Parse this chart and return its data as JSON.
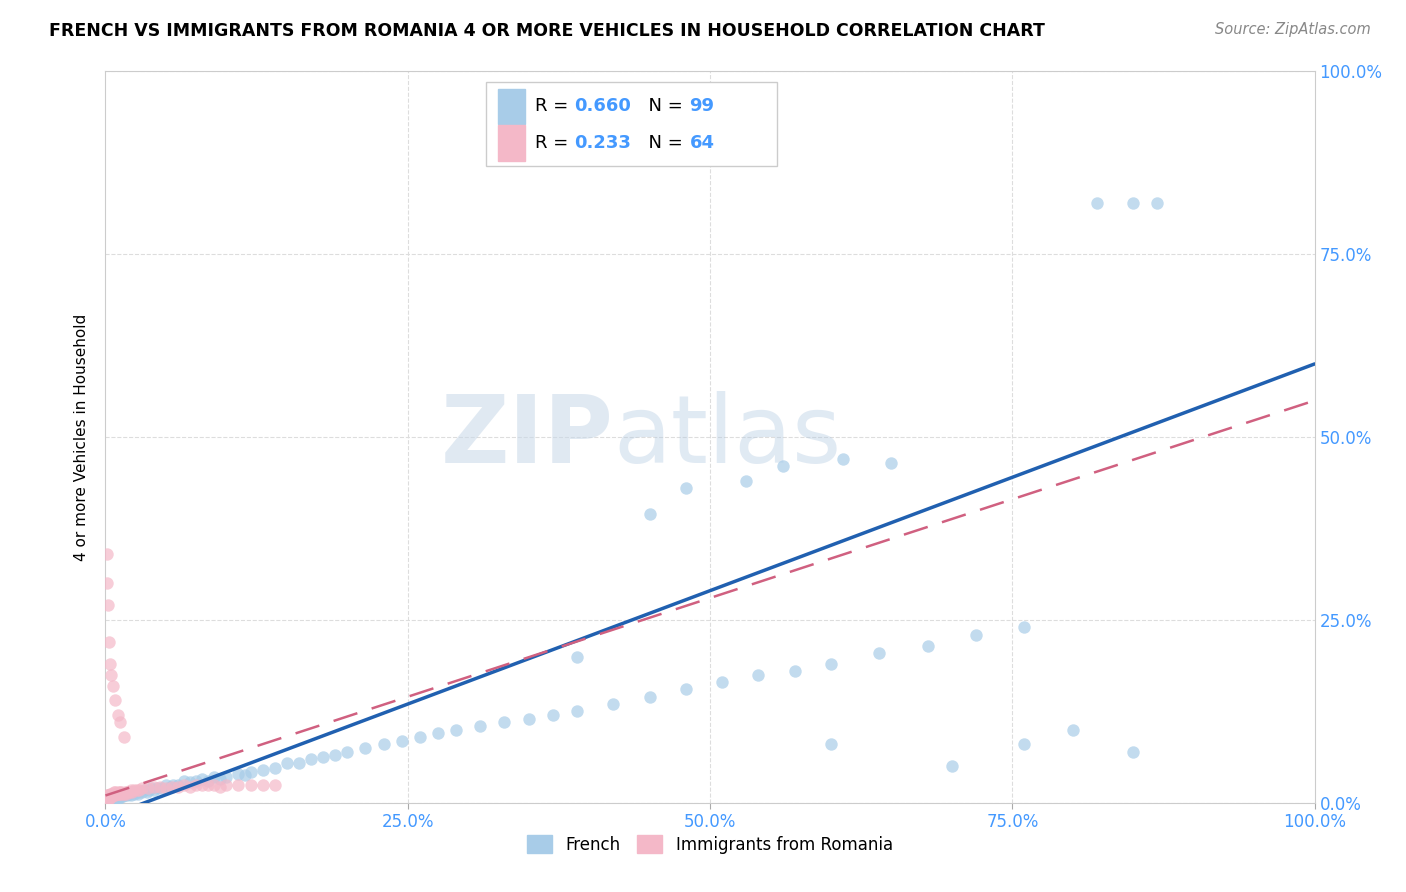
{
  "title": "FRENCH VS IMMIGRANTS FROM ROMANIA 4 OR MORE VEHICLES IN HOUSEHOLD CORRELATION CHART",
  "source": "Source: ZipAtlas.com",
  "ylabel": "4 or more Vehicles in Household",
  "legend_french": "French",
  "legend_romania": "Immigrants from Romania",
  "french_R": "0.660",
  "french_N": "99",
  "romania_R": "0.233",
  "romania_N": "64",
  "french_color": "#a8cce8",
  "romania_color": "#f4b8c8",
  "french_line_color": "#2060b0",
  "romania_line_color": "#d06080",
  "french_scatter_x": [
    0.002,
    0.003,
    0.004,
    0.004,
    0.005,
    0.005,
    0.006,
    0.006,
    0.007,
    0.007,
    0.008,
    0.008,
    0.009,
    0.01,
    0.01,
    0.011,
    0.012,
    0.013,
    0.014,
    0.015,
    0.016,
    0.017,
    0.018,
    0.019,
    0.02,
    0.021,
    0.022,
    0.024,
    0.025,
    0.027,
    0.028,
    0.03,
    0.032,
    0.034,
    0.036,
    0.038,
    0.04,
    0.043,
    0.046,
    0.05,
    0.053,
    0.056,
    0.06,
    0.065,
    0.07,
    0.075,
    0.08,
    0.085,
    0.09,
    0.095,
    0.1,
    0.11,
    0.115,
    0.12,
    0.13,
    0.14,
    0.15,
    0.16,
    0.17,
    0.18,
    0.19,
    0.2,
    0.215,
    0.23,
    0.245,
    0.26,
    0.275,
    0.29,
    0.31,
    0.33,
    0.35,
    0.37,
    0.39,
    0.42,
    0.45,
    0.48,
    0.51,
    0.54,
    0.57,
    0.6,
    0.64,
    0.68,
    0.72,
    0.76,
    0.48,
    0.53,
    0.56,
    0.61,
    0.65,
    0.45,
    0.82,
    0.85,
    0.87,
    0.39,
    0.7,
    0.6,
    0.76,
    0.8,
    0.85
  ],
  "french_scatter_y": [
    0.005,
    0.005,
    0.005,
    0.008,
    0.005,
    0.008,
    0.005,
    0.008,
    0.005,
    0.008,
    0.005,
    0.01,
    0.008,
    0.005,
    0.01,
    0.008,
    0.01,
    0.008,
    0.01,
    0.01,
    0.01,
    0.012,
    0.01,
    0.012,
    0.012,
    0.01,
    0.015,
    0.012,
    0.015,
    0.012,
    0.015,
    0.015,
    0.018,
    0.015,
    0.018,
    0.02,
    0.018,
    0.02,
    0.02,
    0.025,
    0.022,
    0.025,
    0.025,
    0.03,
    0.028,
    0.03,
    0.032,
    0.03,
    0.035,
    0.032,
    0.035,
    0.04,
    0.038,
    0.042,
    0.045,
    0.048,
    0.055,
    0.055,
    0.06,
    0.062,
    0.065,
    0.07,
    0.075,
    0.08,
    0.085,
    0.09,
    0.095,
    0.1,
    0.105,
    0.11,
    0.115,
    0.12,
    0.125,
    0.135,
    0.145,
    0.155,
    0.165,
    0.175,
    0.18,
    0.19,
    0.205,
    0.215,
    0.23,
    0.24,
    0.43,
    0.44,
    0.46,
    0.47,
    0.465,
    0.395,
    0.82,
    0.82,
    0.82,
    0.2,
    0.05,
    0.08,
    0.08,
    0.1,
    0.07
  ],
  "romania_scatter_x": [
    0.001,
    0.001,
    0.002,
    0.002,
    0.003,
    0.003,
    0.004,
    0.004,
    0.005,
    0.005,
    0.006,
    0.007,
    0.007,
    0.008,
    0.008,
    0.009,
    0.01,
    0.01,
    0.011,
    0.012,
    0.012,
    0.013,
    0.014,
    0.015,
    0.016,
    0.017,
    0.018,
    0.019,
    0.02,
    0.021,
    0.022,
    0.024,
    0.026,
    0.028,
    0.03,
    0.035,
    0.04,
    0.045,
    0.05,
    0.055,
    0.06,
    0.065,
    0.07,
    0.075,
    0.08,
    0.085,
    0.09,
    0.095,
    0.1,
    0.11,
    0.12,
    0.13,
    0.14,
    0.015,
    0.012,
    0.01,
    0.008,
    0.006,
    0.005,
    0.004,
    0.003,
    0.002,
    0.001,
    0.001
  ],
  "romania_scatter_y": [
    0.005,
    0.01,
    0.005,
    0.01,
    0.005,
    0.01,
    0.008,
    0.012,
    0.008,
    0.012,
    0.01,
    0.01,
    0.015,
    0.01,
    0.015,
    0.012,
    0.012,
    0.015,
    0.012,
    0.015,
    0.012,
    0.015,
    0.012,
    0.012,
    0.015,
    0.012,
    0.015,
    0.015,
    0.015,
    0.018,
    0.015,
    0.018,
    0.018,
    0.018,
    0.02,
    0.02,
    0.022,
    0.022,
    0.02,
    0.022,
    0.022,
    0.025,
    0.022,
    0.025,
    0.025,
    0.025,
    0.025,
    0.022,
    0.025,
    0.025,
    0.025,
    0.025,
    0.025,
    0.09,
    0.11,
    0.12,
    0.14,
    0.16,
    0.175,
    0.19,
    0.22,
    0.27,
    0.3,
    0.34
  ],
  "french_line_x0": 0.0,
  "french_line_x1": 1.0,
  "french_line_y0": -0.02,
  "french_line_y1": 0.6,
  "romania_line_x0": 0.0,
  "romania_line_x1": 1.0,
  "romania_line_y0": 0.01,
  "romania_line_y1": 0.55,
  "xlim": [
    0.0,
    1.0
  ],
  "ylim": [
    0.0,
    1.0
  ],
  "xticks": [
    0.0,
    0.25,
    0.5,
    0.75,
    1.0
  ],
  "yticks": [
    0.0,
    0.25,
    0.5,
    0.75,
    1.0
  ],
  "xticklabels": [
    "0.0%",
    "25.0%",
    "50.0%",
    "75.0%",
    "100.0%"
  ],
  "yticklabels": [
    "0.0%",
    "25.0%",
    "50.0%",
    "75.0%",
    "100.0%"
  ],
  "tick_color": "#4499ff",
  "grid_color": "#dddddd",
  "watermark_zip": "ZIP",
  "watermark_atlas": "atlas",
  "marker_size": 80
}
